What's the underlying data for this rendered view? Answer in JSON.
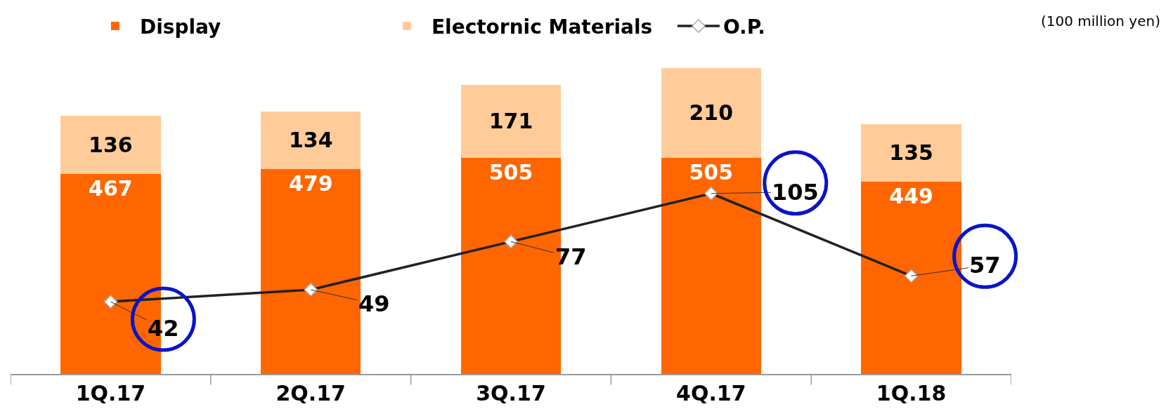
{
  "chart_data": {
    "type": "bar",
    "stacked": true,
    "categories": [
      "1Q.17",
      "2Q.17",
      "3Q.17",
      "4Q.17",
      "1Q.18"
    ],
    "series": [
      {
        "name": "Display",
        "color": "#ff6600",
        "values": [
          467,
          479,
          505,
          505,
          449
        ]
      },
      {
        "name": "Electornic Materials",
        "color": "#ffcc99",
        "values": [
          136,
          134,
          171,
          210,
          135
        ]
      },
      {
        "name": "O.P.",
        "type": "line",
        "axis": "y2",
        "color": "#222222",
        "marker": "diamond",
        "values": [
          42,
          49,
          77,
          105,
          57
        ]
      }
    ],
    "tick_labels": "x",
    "data_labels": true,
    "grid": false,
    "legend": "top",
    "annotations": [
      "(100 million yen)"
    ]
  }
}
